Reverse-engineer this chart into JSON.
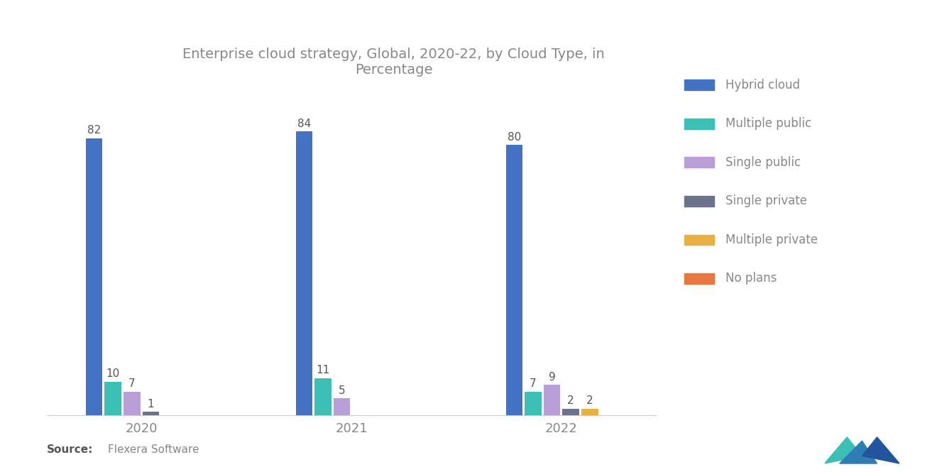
{
  "title": "Enterprise cloud strategy, Global, 2020-22, by Cloud Type, in\nPercentage",
  "years": [
    "2020",
    "2021",
    "2022"
  ],
  "categories": [
    "Hybrid cloud",
    "Multiple public",
    "Single public",
    "Single private",
    "Multiple private",
    "No plans"
  ],
  "colors": [
    "#4472C4",
    "#3CBFB4",
    "#B89FD8",
    "#6B738A",
    "#E8B040",
    "#E87840"
  ],
  "data": {
    "2020": [
      82,
      10,
      7,
      1,
      0,
      0
    ],
    "2021": [
      84,
      11,
      5,
      0,
      0,
      0
    ],
    "2022": [
      80,
      7,
      9,
      2,
      2,
      0
    ]
  },
  "source_label": "Source:",
  "source_text": "Flexera Software",
  "background_color": "#FFFFFF",
  "bar_width": 0.09,
  "ylim": [
    0,
    95
  ],
  "label_fontsize": 11,
  "title_fontsize": 14,
  "legend_fontsize": 12,
  "axis_fontsize": 13,
  "source_fontsize": 11,
  "text_color": "#888888",
  "label_color": "#555555"
}
